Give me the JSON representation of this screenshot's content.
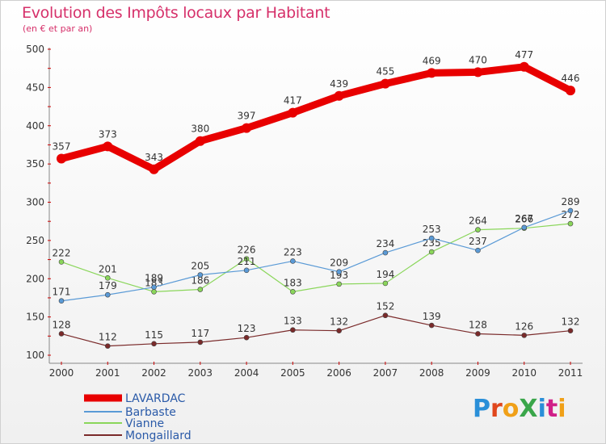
{
  "header": {
    "title": "Evolution des Impôts locaux par Habitant",
    "subtitle": "(en € et par an)"
  },
  "logo": {
    "text": "ProXiti",
    "colors": [
      "#2a8fd8",
      "#e0461c",
      "#f0a018",
      "#3aa64a",
      "#2a8fd8",
      "#d02088",
      "#f0a018"
    ]
  },
  "chart_data": {
    "type": "line",
    "title": "Evolution des Impôts locaux par Habitant",
    "subtitle": "(en € et par an)",
    "xlabel": "",
    "ylabel": "",
    "x": [
      "2000",
      "2001",
      "2002",
      "2003",
      "2004",
      "2005",
      "2006",
      "2007",
      "2008",
      "2009",
      "2010",
      "2011"
    ],
    "ylim": [
      100,
      500
    ],
    "yticks": [
      "100",
      "150",
      "200",
      "250",
      "300",
      "350",
      "400",
      "450",
      "500"
    ],
    "grid": false,
    "legend_position": "bottom-left",
    "series": [
      {
        "name": "LAVARDAC",
        "color": "#e80000",
        "values": [
          357,
          373,
          343,
          380,
          397,
          417,
          439,
          455,
          469,
          470,
          477,
          446
        ]
      },
      {
        "name": "Barbaste",
        "color": "#5a9ad6",
        "values": [
          171,
          179,
          189,
          205,
          211,
          223,
          209,
          234,
          253,
          237,
          267,
          289
        ]
      },
      {
        "name": "Vianne",
        "color": "#8ad65a",
        "values": [
          222,
          201,
          183,
          186,
          226,
          183,
          193,
          194,
          235,
          264,
          266,
          272
        ]
      },
      {
        "name": "Mongaillard",
        "color": "#7a2a2a",
        "values": [
          128,
          112,
          115,
          117,
          123,
          133,
          132,
          152,
          139,
          128,
          126,
          132
        ]
      }
    ]
  }
}
